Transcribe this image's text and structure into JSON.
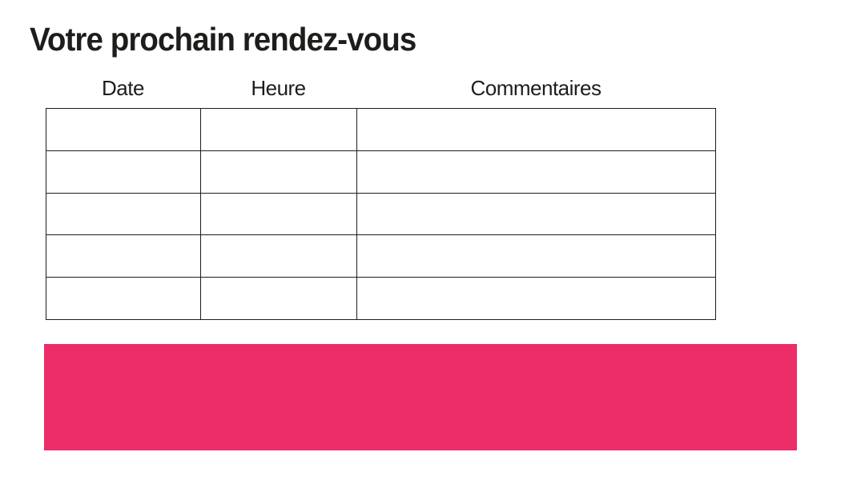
{
  "page": {
    "title": "Votre prochain rendez-vous"
  },
  "appointments_table": {
    "columns": [
      "Date",
      "Heure",
      "Commentaires"
    ],
    "rows": [
      [
        "",
        "",
        ""
      ],
      [
        "",
        "",
        ""
      ],
      [
        "",
        "",
        ""
      ],
      [
        "",
        "",
        ""
      ],
      [
        "",
        "",
        ""
      ]
    ]
  },
  "banner": {
    "text": ""
  },
  "colors": {
    "accent_pink": "#ED2D68",
    "text": "#1D1D1B",
    "table_border": "#1D1D1B",
    "background": "#FFFFFF"
  }
}
